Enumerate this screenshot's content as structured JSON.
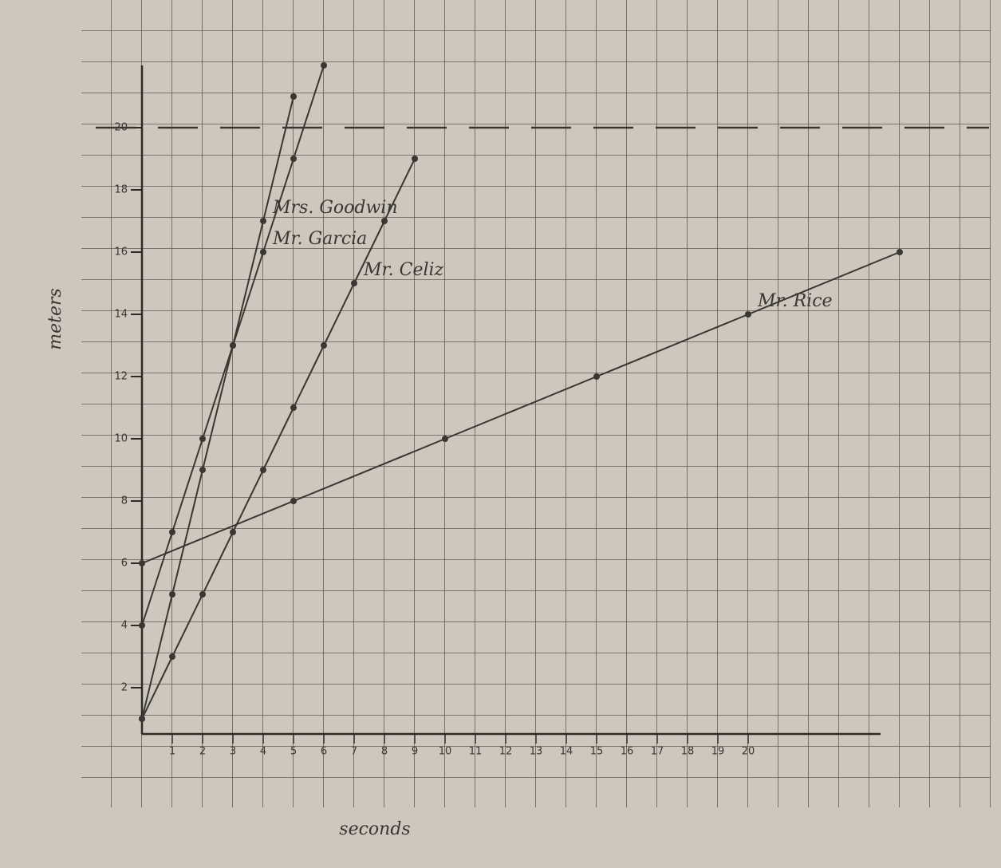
{
  "chart_data": {
    "type": "line",
    "x_label": "seconds",
    "y_label": "meters",
    "xlim": [
      0,
      27
    ],
    "ylim": [
      0,
      22
    ],
    "xticks": [
      1,
      2,
      3,
      4,
      5,
      6,
      7,
      8,
      9,
      10,
      11,
      12,
      13,
      14,
      15,
      16,
      17,
      18,
      19,
      20
    ],
    "yticks": [
      2,
      4,
      6,
      8,
      10,
      12,
      14,
      16,
      18,
      20
    ],
    "reference_line": 20,
    "series": [
      {
        "name": "Mr. Garcia",
        "color": "#3a3632",
        "x": [
          0,
          1,
          2,
          3,
          4,
          5,
          6
        ],
        "values": [
          4,
          7,
          10,
          13,
          16,
          19,
          22
        ]
      },
      {
        "name": "Mrs. Goodwin",
        "color": "#3a3632",
        "x": [
          0,
          1,
          2,
          3,
          4,
          5
        ],
        "values": [
          1,
          5,
          9,
          13,
          17,
          21
        ]
      },
      {
        "name": "Mr. Celiz",
        "color": "#3a3632",
        "x": [
          0,
          1,
          2,
          3,
          4,
          5,
          6,
          7,
          8,
          9
        ],
        "values": [
          1,
          3,
          5,
          7,
          9,
          11,
          13,
          15,
          17,
          19
        ]
      },
      {
        "name": "Mr. Rice",
        "color": "#3a3632",
        "x": [
          0,
          5,
          10,
          15,
          20,
          25
        ],
        "values": [
          6,
          8,
          10,
          12,
          14,
          16
        ]
      }
    ]
  }
}
